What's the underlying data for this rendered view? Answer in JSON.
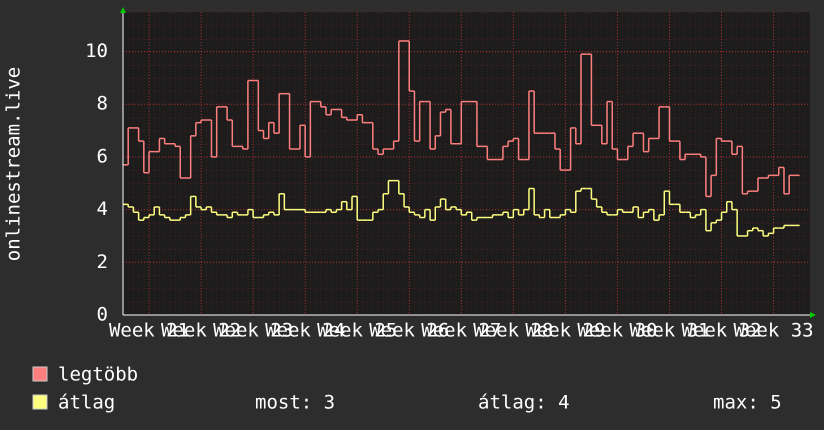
{
  "chart_data": {
    "type": "step-line",
    "ylabel": "onlinestream.live",
    "xlim": [
      0,
      132
    ],
    "ylim": [
      0,
      11.5
    ],
    "xticks": [
      {
        "value": 5,
        "label": "Week 21"
      },
      {
        "value": 15,
        "label": "Week 22"
      },
      {
        "value": 25,
        "label": "Week 23"
      },
      {
        "value": 35,
        "label": "Week 24"
      },
      {
        "value": 45,
        "label": "Week 25"
      },
      {
        "value": 55,
        "label": "Week 26"
      },
      {
        "value": 65,
        "label": "Week 27"
      },
      {
        "value": 75,
        "label": "Week 28"
      },
      {
        "value": 85,
        "label": "Week 29"
      },
      {
        "value": 95,
        "label": "Week 30"
      },
      {
        "value": 105,
        "label": "Week 31"
      },
      {
        "value": 115,
        "label": "Week 32"
      },
      {
        "value": 125,
        "label": "Week 33"
      }
    ],
    "yticks": [
      0,
      2,
      4,
      6,
      8,
      10
    ],
    "grid": true,
    "series": [
      {
        "name": "legtöbb",
        "color": "#ff7f7f",
        "values": [
          5.7,
          7.1,
          7.1,
          6.6,
          5.4,
          6.2,
          6.2,
          6.7,
          6.5,
          6.5,
          6.4,
          5.2,
          5.2,
          6.8,
          7.3,
          7.4,
          7.4,
          6.0,
          7.9,
          7.9,
          7.4,
          6.4,
          6.4,
          6.3,
          8.9,
          8.9,
          7.0,
          6.7,
          7.3,
          6.9,
          8.4,
          8.4,
          6.3,
          6.3,
          7.2,
          6.0,
          8.1,
          8.1,
          7.9,
          7.6,
          7.8,
          7.8,
          7.5,
          7.4,
          7.4,
          7.6,
          7.3,
          7.3,
          6.3,
          6.1,
          6.3,
          6.3,
          6.6,
          10.4,
          10.4,
          8.5,
          6.6,
          8.1,
          8.1,
          6.3,
          6.8,
          7.7,
          7.8,
          6.5,
          6.5,
          8.1,
          8.1,
          8.1,
          6.4,
          6.4,
          5.9,
          5.9,
          5.9,
          6.4,
          6.6,
          6.7,
          5.9,
          5.9,
          8.5,
          6.9,
          6.9,
          6.9,
          6.9,
          6.3,
          5.5,
          5.5,
          7.1,
          6.5,
          9.9,
          9.9,
          7.2,
          7.2,
          6.5,
          8.1,
          6.3,
          5.9,
          5.9,
          6.4,
          6.9,
          6.9,
          6.2,
          6.7,
          6.7,
          7.9,
          7.9,
          6.6,
          6.6,
          5.9,
          6.1,
          6.1,
          6.1,
          6.0,
          4.5,
          5.3,
          6.7,
          6.6,
          6.6,
          6.1,
          6.4,
          4.6,
          4.7,
          4.7,
          5.2,
          5.2,
          5.3,
          5.3,
          5.6,
          4.6,
          5.3,
          5.3
        ]
      },
      {
        "name": "átlag",
        "color": "#ffff80",
        "values": [
          4.2,
          4.1,
          3.9,
          3.6,
          3.7,
          3.8,
          4.1,
          3.8,
          3.7,
          3.6,
          3.6,
          3.7,
          3.8,
          4.5,
          4.1,
          4.0,
          4.1,
          3.9,
          3.8,
          3.8,
          3.7,
          3.9,
          3.8,
          3.8,
          4.0,
          3.7,
          3.7,
          3.8,
          3.9,
          3.8,
          4.6,
          4.0,
          4.0,
          4.0,
          4.0,
          3.9,
          3.9,
          3.9,
          3.9,
          4.0,
          3.9,
          4.0,
          4.3,
          4.0,
          4.5,
          3.6,
          3.6,
          3.6,
          3.9,
          4.0,
          4.6,
          5.1,
          5.1,
          4.6,
          4.1,
          3.9,
          3.8,
          3.7,
          4.0,
          3.6,
          4.1,
          4.4,
          4.0,
          4.1,
          4.0,
          3.8,
          3.9,
          3.6,
          3.7,
          3.7,
          3.7,
          3.8,
          3.8,
          3.9,
          3.7,
          4.0,
          3.8,
          4.0,
          4.8,
          3.8,
          3.7,
          4.0,
          3.7,
          3.7,
          3.8,
          4.0,
          3.9,
          4.7,
          4.8,
          4.8,
          4.4,
          4.1,
          3.9,
          3.8,
          3.8,
          4.0,
          3.9,
          3.9,
          4.1,
          3.7,
          3.9,
          4.0,
          3.6,
          3.8,
          4.7,
          4.2,
          4.2,
          3.9,
          3.9,
          3.7,
          3.8,
          4.0,
          3.2,
          3.5,
          3.6,
          3.9,
          4.3,
          4.0,
          3.0,
          3.0,
          3.2,
          3.3,
          3.2,
          3.0,
          3.1,
          3.3,
          3.3,
          3.4,
          3.4,
          3.4
        ]
      }
    ],
    "stats": [
      "most: 3",
      "átlag: 4",
      "max: 5"
    ]
  }
}
